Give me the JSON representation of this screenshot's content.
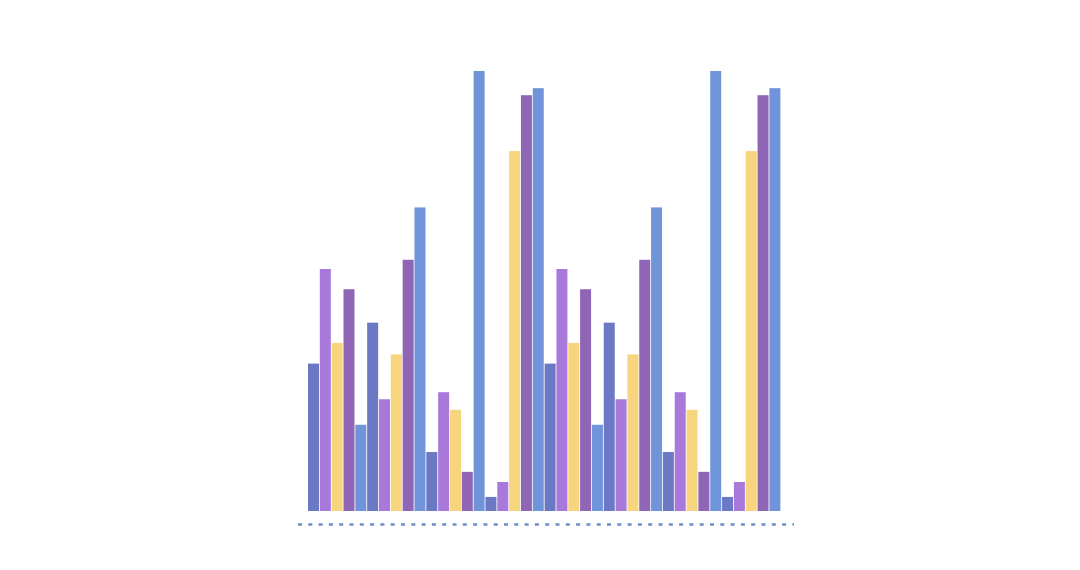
{
  "chart_data": {
    "type": "bar",
    "title": "",
    "xlabel": "",
    "ylabel": "",
    "ylim": [
      0,
      100
    ],
    "grid": false,
    "legend": "none",
    "baseline_style": "dashed",
    "colors": {
      "indigo": "#6B78C4",
      "lavender": "#A879DB",
      "yellow": "#F7D57E",
      "purple": "#8F65B5",
      "blue": "#7094DA",
      "baseline": "#6C8EC9"
    },
    "groups": [
      {
        "bars": [
          {
            "value": 33.5,
            "color": "indigo"
          },
          {
            "value": 55.0,
            "color": "lavender"
          },
          {
            "value": 38.2,
            "color": "yellow"
          },
          {
            "value": 50.4,
            "color": "purple"
          },
          {
            "value": 19.6,
            "color": "blue"
          },
          {
            "value": 42.8,
            "color": "indigo"
          },
          {
            "value": 25.4,
            "color": "lavender"
          },
          {
            "value": 35.6,
            "color": "yellow"
          },
          {
            "value": 57.1,
            "color": "purple"
          },
          {
            "value": 69.0,
            "color": "blue"
          },
          {
            "value": 13.4,
            "color": "indigo"
          },
          {
            "value": 27.0,
            "color": "lavender"
          },
          {
            "value": 23.0,
            "color": "yellow"
          },
          {
            "value": 8.9,
            "color": "purple"
          },
          {
            "value": 100.0,
            "color": "blue"
          },
          {
            "value": 3.2,
            "color": "indigo"
          },
          {
            "value": 6.6,
            "color": "lavender"
          },
          {
            "value": 81.8,
            "color": "yellow"
          },
          {
            "value": 94.5,
            "color": "purple"
          },
          {
            "value": 96.1,
            "color": "blue"
          }
        ]
      },
      {
        "bars": [
          {
            "value": 33.5,
            "color": "indigo"
          },
          {
            "value": 55.0,
            "color": "lavender"
          },
          {
            "value": 38.2,
            "color": "yellow"
          },
          {
            "value": 50.4,
            "color": "purple"
          },
          {
            "value": 19.6,
            "color": "blue"
          },
          {
            "value": 42.8,
            "color": "indigo"
          },
          {
            "value": 25.4,
            "color": "lavender"
          },
          {
            "value": 35.6,
            "color": "yellow"
          },
          {
            "value": 57.1,
            "color": "purple"
          },
          {
            "value": 69.0,
            "color": "blue"
          },
          {
            "value": 13.4,
            "color": "indigo"
          },
          {
            "value": 27.0,
            "color": "lavender"
          },
          {
            "value": 23.0,
            "color": "yellow"
          },
          {
            "value": 8.9,
            "color": "purple"
          },
          {
            "value": 100.0,
            "color": "blue"
          },
          {
            "value": 3.2,
            "color": "indigo"
          },
          {
            "value": 6.6,
            "color": "lavender"
          },
          {
            "value": 81.8,
            "color": "yellow"
          },
          {
            "value": 94.5,
            "color": "purple"
          },
          {
            "value": 96.1,
            "color": "blue"
          }
        ]
      }
    ]
  }
}
